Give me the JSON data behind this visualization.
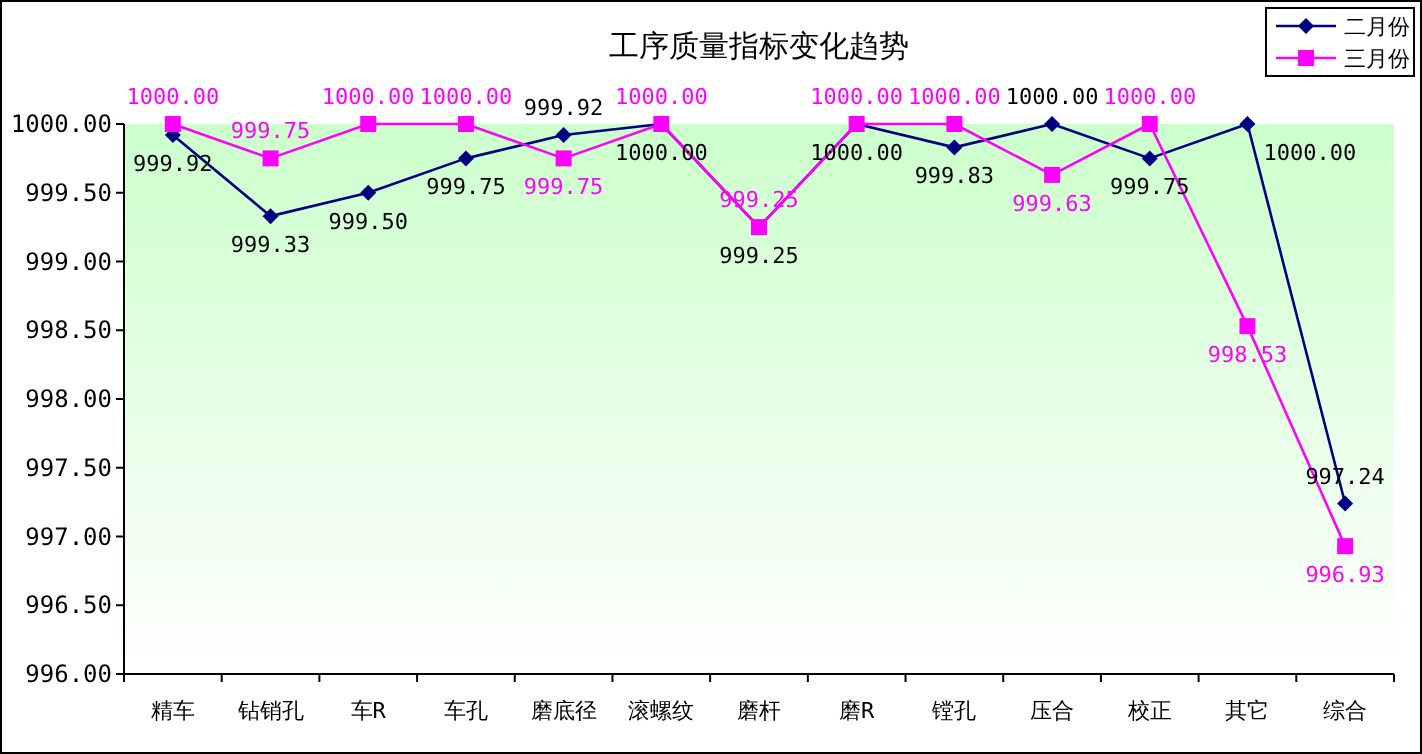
{
  "chart_data": {
    "type": "line",
    "title": "工序质量指标变化趋势",
    "categories": [
      "精车",
      "钻销孔",
      "车R",
      "车孔",
      "磨底径",
      "滚螺纹",
      "磨杆",
      "磨R",
      "镗孔",
      "压合",
      "校正",
      "其它",
      "综合"
    ],
    "series": [
      {
        "name": "二月份",
        "color": "#000080",
        "marker": "diamond",
        "values": [
          999.92,
          999.33,
          999.5,
          999.75,
          999.92,
          1000.0,
          999.25,
          1000.0,
          999.83,
          1000.0,
          999.75,
          1000.0,
          997.24
        ],
        "value_labels": [
          "999.92",
          "999.33",
          "999.50",
          "999.75",
          "999.92",
          "1000.00",
          "999.25",
          "1000.00",
          "999.83",
          "1000.00",
          "999.75",
          "1000.00",
          "997.24"
        ]
      },
      {
        "name": "三月份",
        "color": "#ff00ff",
        "marker": "square",
        "values": [
          1000.0,
          999.75,
          1000.0,
          1000.0,
          999.75,
          1000.0,
          999.25,
          1000.0,
          1000.0,
          999.63,
          1000.0,
          998.53,
          996.93
        ],
        "value_labels": [
          "1000.00",
          "999.75",
          "1000.00",
          "1000.00",
          "999.75",
          "1000.00",
          "999.25",
          "1000.00",
          "1000.00",
          "999.63",
          "1000.00",
          "998.53",
          "996.93"
        ]
      }
    ],
    "ylim": [
      996,
      1000
    ],
    "yticks": [
      {
        "value": 996,
        "label": "996.00"
      },
      {
        "value": 996.5,
        "label": "996.50"
      },
      {
        "value": 997,
        "label": "997.00"
      },
      {
        "value": 997.5,
        "label": "997.50"
      },
      {
        "value": 998,
        "label": "998.00"
      },
      {
        "value": 998.5,
        "label": "998.50"
      },
      {
        "value": 999,
        "label": "999.00"
      },
      {
        "value": 999.5,
        "label": "999.50"
      },
      {
        "value": 1000,
        "label": "1000.00"
      }
    ],
    "legend": "top right",
    "grid": false
  }
}
